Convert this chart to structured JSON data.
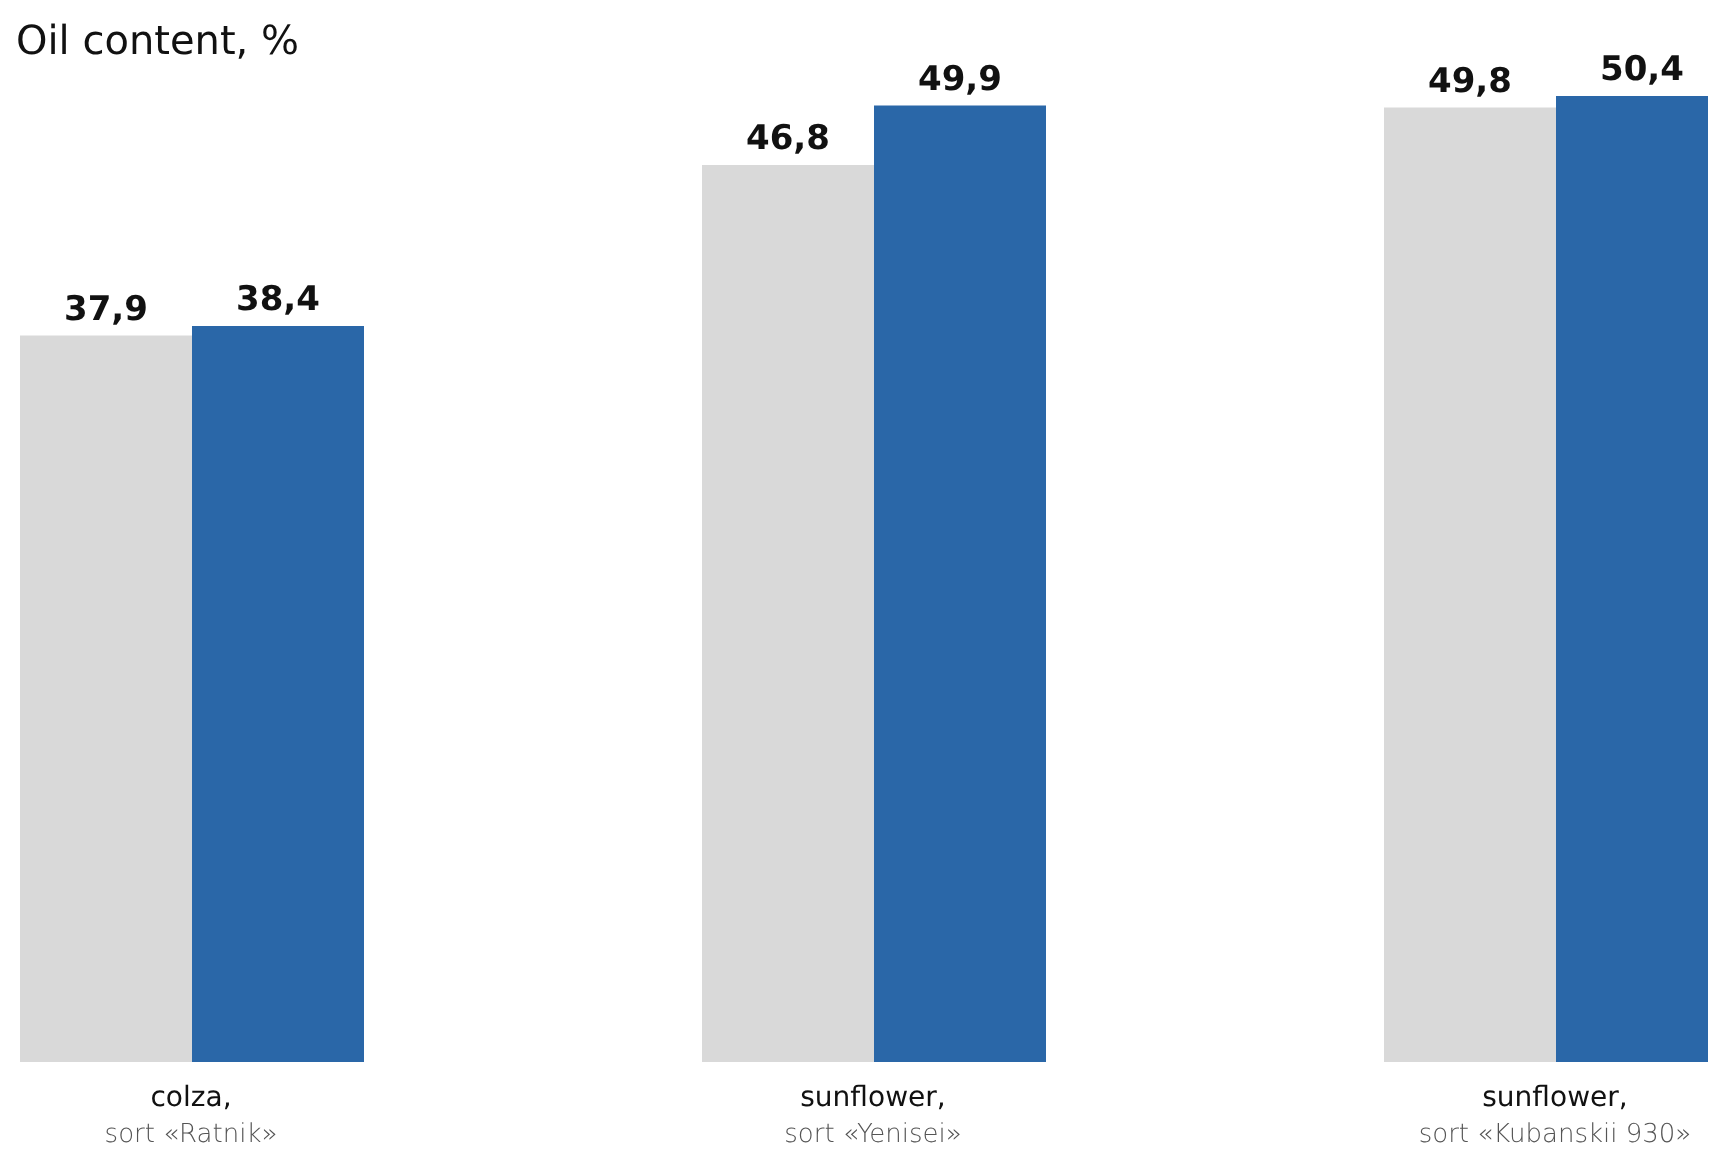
{
  "chart_data": {
    "type": "bar",
    "title": "Oil content, %",
    "categories": [
      "colza,\nsort «Ratnik»",
      "sunflower,\nsort «Yenisei»",
      "sunflower,\nsort «Kubanskii 930»"
    ],
    "series": [
      {
        "color": "#d9d9d9",
        "values": [
          37.9,
          46.8,
          49.8
        ],
        "value_labels": [
          "37,9",
          "46,8",
          "49,8"
        ]
      },
      {
        "color": "#2a67a8",
        "values": [
          38.4,
          49.9,
          50.4
        ],
        "value_labels": [
          "38,4",
          "49,9",
          "50,4"
        ]
      }
    ],
    "tick_labels": "x"
  }
}
